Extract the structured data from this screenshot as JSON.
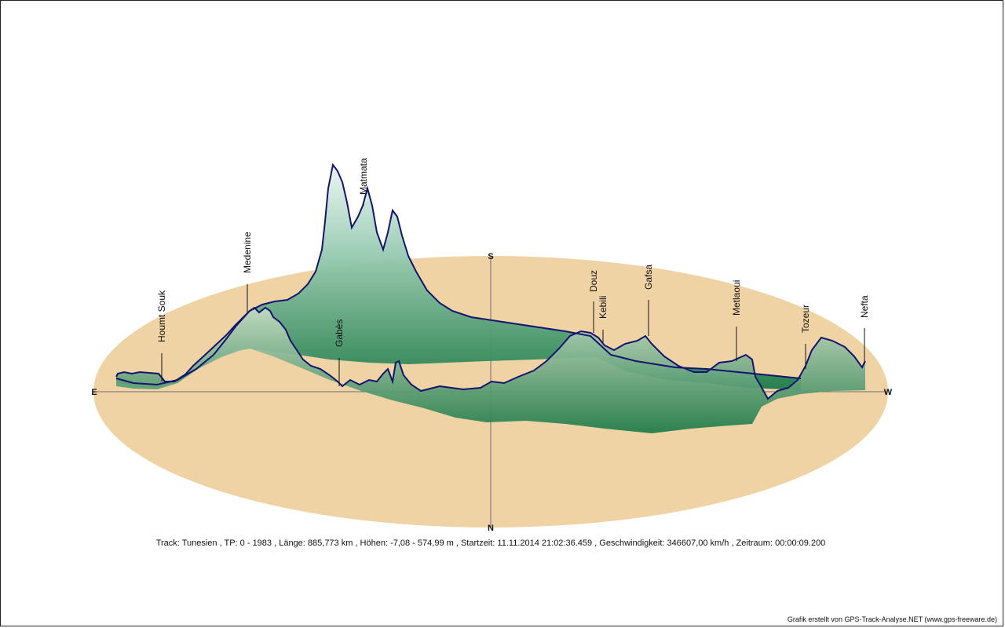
{
  "chart_data": {
    "type": "area",
    "title": "",
    "xlabel": "",
    "ylabel": "",
    "elevation_range_m": [
      -7.08,
      574.99
    ],
    "directions": {
      "north": "N",
      "south": "S",
      "east": "E",
      "west": "W"
    },
    "places": [
      {
        "name": "Houmt Souk",
        "elevation_m": 10
      },
      {
        "name": "Medenine",
        "elevation_m": 110
      },
      {
        "name": "Gabès",
        "elevation_m": 5
      },
      {
        "name": "Matmata",
        "elevation_m": 560
      },
      {
        "name": "Douz",
        "elevation_m": 75
      },
      {
        "name": "Kebili",
        "elevation_m": 40
      },
      {
        "name": "Gafsa",
        "elevation_m": 310
      },
      {
        "name": "Metlaoui",
        "elevation_m": 200
      },
      {
        "name": "Tozeur",
        "elevation_m": 50
      },
      {
        "name": "Nefta",
        "elevation_m": 90
      }
    ],
    "colors": {
      "ground": "#f0d3a5",
      "profile_line": "#14146e",
      "fill_low": "#1c7a48",
      "fill_high": "#eaf6f2",
      "axis": "#6b6b7a"
    }
  },
  "footer": {
    "info": "Track: Tunesien  ,  TP: 0 - 1983  ,  Länge: 885,773 km  ,  Höhen: -7,08 - 574,99 m  ,  Startzeit: 11.11.2014 21:02:36.459  ,  Geschwindigkeit: 346607,00 km/h  ,  Zeitraum: 00:00:09.200",
    "credit": "Grafik erstellt von GPS-Track-Analyse.NET (www.gps-freeware.de)"
  }
}
